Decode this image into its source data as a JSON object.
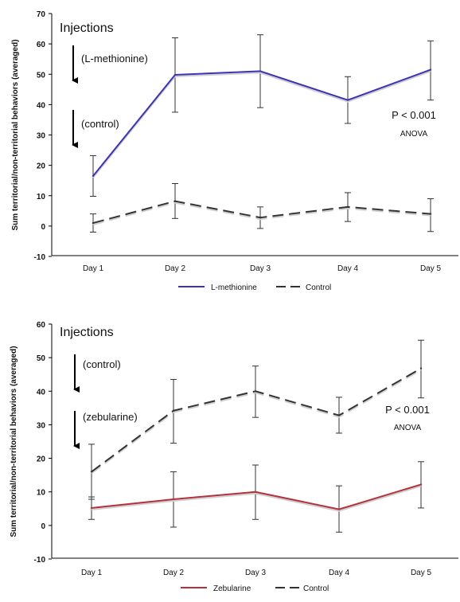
{
  "chart_data": [
    {
      "type": "line",
      "ylabel": "Sum territorial/non-territorial behaviors (averaged)",
      "categories": [
        "Day 1",
        "Day 2",
        "Day 3",
        "Day 4",
        "Day 5"
      ],
      "ylim": [
        -10,
        70
      ],
      "yticks": [
        "-10",
        "0",
        "10",
        "20",
        "30",
        "40",
        "50",
        "60",
        "70"
      ],
      "series": [
        {
          "name": "L-methionine",
          "style": "solid",
          "color": "#3b35b5",
          "values": [
            16.5,
            49.8,
            51.0,
            41.5,
            51.5
          ],
          "error_low": [
            9.8,
            37.5,
            39.0,
            33.8,
            41.5
          ],
          "error_high": [
            23.2,
            62.0,
            63.0,
            49.2,
            61.0
          ]
        },
        {
          "name": "Control",
          "style": "dashed",
          "color": "#333333",
          "values": [
            1.0,
            8.2,
            2.8,
            6.3,
            4.0
          ],
          "error_low": [
            -2.0,
            2.5,
            -0.8,
            1.5,
            -1.8
          ],
          "error_high": [
            4.0,
            14.0,
            6.3,
            11.0,
            9.0
          ]
        }
      ],
      "annotations": {
        "injections": "Injections",
        "arrow1_label": "(L-methionine)",
        "arrow2_label": "(control)",
        "pvalue": "P < 0.001",
        "test": "ANOVA"
      }
    },
    {
      "type": "line",
      "ylabel": "Sum territorial/non-territorial behaviors (averaged)",
      "categories": [
        "Day 1",
        "Day 2",
        "Day 3",
        "Day 4",
        "Day 5"
      ],
      "ylim": [
        -10,
        60
      ],
      "yticks": [
        "-10",
        "0",
        "10",
        "20",
        "30",
        "40",
        "50",
        "60"
      ],
      "series": [
        {
          "name": "Zebularine",
          "style": "solid",
          "color": "#b5303a",
          "values": [
            5.2,
            7.8,
            10.0,
            4.8,
            12.2
          ],
          "error_low": [
            1.8,
            -0.5,
            1.8,
            -2.0,
            5.2
          ],
          "error_high": [
            8.5,
            16.0,
            18.0,
            11.8,
            19.0
          ]
        },
        {
          "name": "Control",
          "style": "dashed",
          "color": "#333333",
          "values": [
            16.0,
            34.2,
            40.0,
            32.8,
            46.8
          ],
          "error_low": [
            7.8,
            24.5,
            32.2,
            27.5,
            38.0
          ],
          "error_high": [
            24.2,
            43.5,
            47.5,
            38.2,
            55.2
          ]
        }
      ],
      "annotations": {
        "injections": "Injections",
        "arrow1_label": "(control)",
        "arrow2_label": "(zebularine)",
        "pvalue": "P < 0.001",
        "test": "ANOVA"
      }
    }
  ]
}
